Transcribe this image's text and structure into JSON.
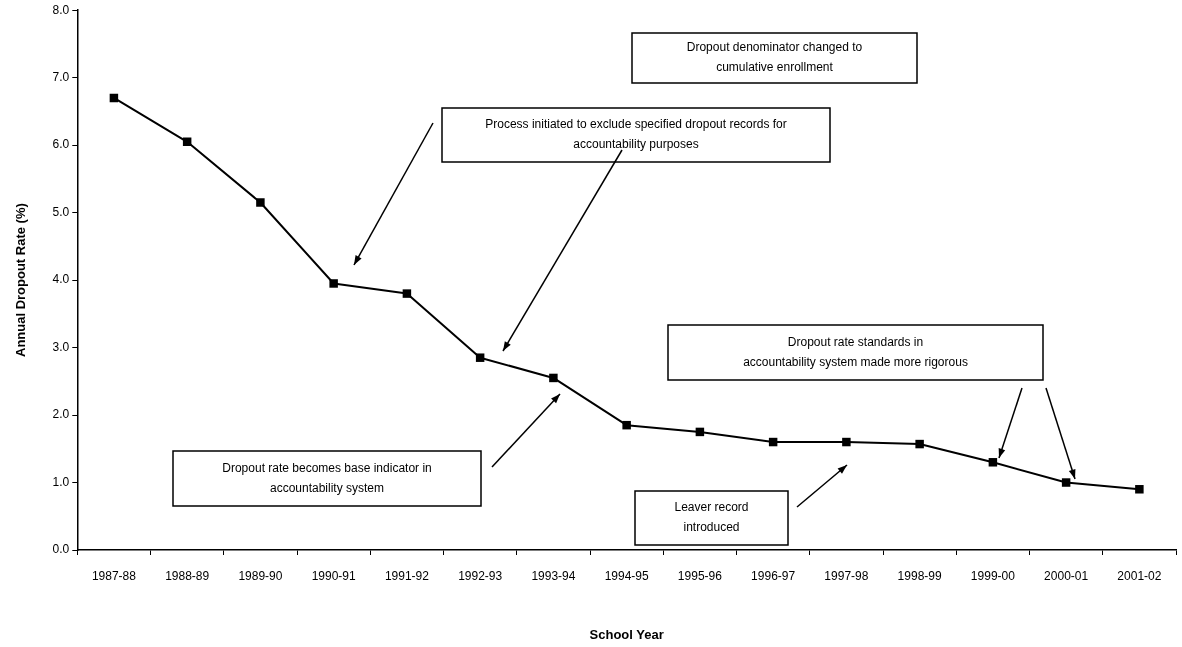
{
  "chart_data": {
    "type": "line",
    "categories": [
      "1987-88",
      "1988-89",
      "1989-90",
      "1990-91",
      "1991-92",
      "1992-93",
      "1993-94",
      "1994-95",
      "1995-96",
      "1996-97",
      "1997-98",
      "1998-99",
      "1999-00",
      "2000-01",
      "2001-02"
    ],
    "series": [
      {
        "color": "#000000",
        "values": [
          6.7,
          6.05,
          5.15,
          3.95,
          3.8,
          2.85,
          2.55,
          1.85,
          1.75,
          1.6,
          1.6,
          1.57,
          1.3,
          1.0,
          0.9
        ]
      }
    ],
    "xlabel": "School Year",
    "ylabel": "Annual Dropout Rate (%)",
    "ylim": [
      0,
      8
    ],
    "yticks": [
      {
        "value": 0,
        "label": "0.0"
      },
      {
        "value": 1,
        "label": "1.0"
      },
      {
        "value": 2,
        "label": "2.0"
      },
      {
        "value": 3,
        "label": "3.0"
      },
      {
        "value": 4,
        "label": "4.0"
      },
      {
        "value": 5,
        "label": "5.0"
      },
      {
        "value": 6,
        "label": "6.0"
      },
      {
        "value": 7,
        "label": "7.0"
      },
      {
        "value": 8,
        "label": "8.0"
      }
    ],
    "annotations": [
      "Process initiated to exclude specified dropout records for\naccountability purposes",
      "Dropout denominator changed to\ncumulative enrollment",
      "Dropout rate standards in\naccountability system made more rigorous",
      "Dropout rate becomes base indicator in\naccountability system",
      "Leaver record\nintroduced"
    ],
    "grid": false,
    "legend": false,
    "marker": "square",
    "line_style": "solid"
  }
}
